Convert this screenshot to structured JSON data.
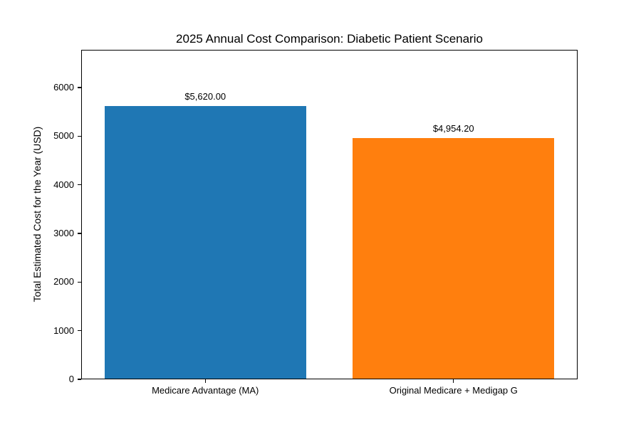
{
  "chart_data": {
    "type": "bar",
    "title": "2025 Annual Cost Comparison: Diabetic Patient Scenario",
    "categories": [
      "Medicare Advantage (MA)",
      "Original Medicare + Medigap G"
    ],
    "values": [
      5620.0,
      4954.2
    ],
    "value_labels": [
      "$5,620.00",
      "$4,954.20"
    ],
    "bar_colors": [
      "#1f77b4",
      "#ff7f0e"
    ],
    "xlabel": "",
    "ylabel": "Total Estimated Cost for the Year (USD)",
    "yticks": [
      0,
      1000,
      2000,
      3000,
      4000,
      5000,
      6000
    ],
    "ylim": [
      0,
      6776
    ],
    "grid": false,
    "legend": "none",
    "background_color": "#ffffff",
    "spine_color": "#000000"
  }
}
